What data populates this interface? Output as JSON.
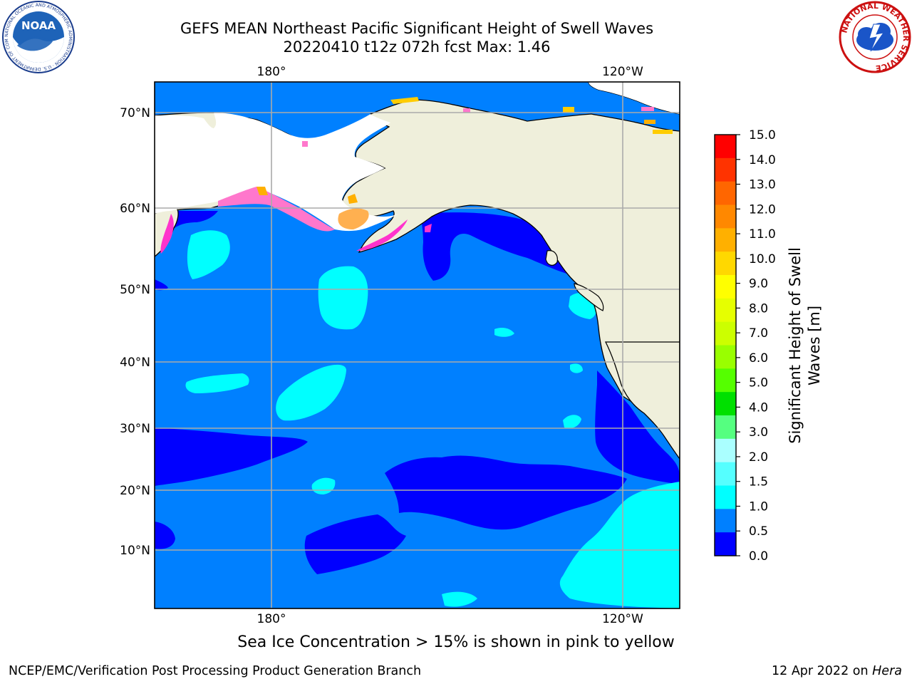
{
  "title": {
    "line1": "GEFS MEAN Northeast Pacific Significant Height of Swell Waves",
    "line2": "20220410 t12z 072h fcst   Max: 1.46"
  },
  "map": {
    "top_lon_labels": [
      "180°",
      "120°W"
    ],
    "bottom_lon_labels": [
      "180°",
      "120°W"
    ],
    "lat_labels": [
      "70°N",
      "60°N",
      "50°N",
      "40°N",
      "30°N",
      "20°N",
      "10°N"
    ],
    "land_color": "#efefdb",
    "ocean_colors": {
      "0.0-0.5": "#0000ff",
      "0.5-1.0": "#0080ff",
      "1.0-1.5": "#00ffff"
    }
  },
  "colorbar": {
    "title_line1": "Significant Height of Swell",
    "title_line2": "Waves [m]",
    "ticks": [
      "15.0",
      "14.0",
      "13.0",
      "12.0",
      "11.0",
      "10.0",
      "9.0",
      "8.0",
      "7.0",
      "6.0",
      "5.0",
      "4.0",
      "3.0",
      "2.0",
      "1.5",
      "1.0",
      "0.5",
      "0.0"
    ],
    "colors_top_to_bottom": [
      "#ff0000",
      "#ff3300",
      "#ff6600",
      "#ff8800",
      "#ffb000",
      "#ffd800",
      "#ffff00",
      "#e6ff00",
      "#ccff00",
      "#99ff00",
      "#55ff00",
      "#00e000",
      "#55ff80",
      "#aaffff",
      "#55ffff",
      "#00ffff",
      "#0080ff",
      "#0000ff"
    ]
  },
  "note": "Sea Ice Concentration > 15% is shown in pink to yellow",
  "footer": {
    "left": "NCEP/EMC/Verification Post Processing Product Generation Branch",
    "right_date": "12 Apr 2022 on ",
    "right_host": "Hera"
  },
  "logos": {
    "noaa_text": "NOAA",
    "noaa_ring": "NATIONAL OCEANIC AND ATMOSPHERIC ADMINISTRATION · U.S. DEPARTMENT OF COMMERCE",
    "nws_ring": "NATIONAL WEATHER SERVICE"
  }
}
